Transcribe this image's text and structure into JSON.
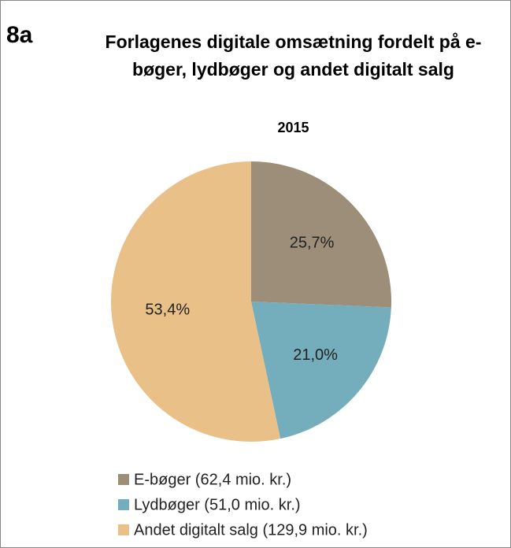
{
  "chart_data": {
    "type": "pie",
    "annotation": "8a",
    "title": "Forlagenes digitale omsætning fordelt på e-bøger, lydbøger og andet digitalt salg",
    "subtitle": "2015",
    "categories": [
      "E-bøger (62,4 mio. kr.)",
      "Lydbøger (51,0 mio. kr.)",
      "Andet digitalt salg (129,9 mio. kr.)"
    ],
    "values": [
      25.7,
      21.0,
      53.4
    ],
    "value_labels": [
      "25,7%",
      "21,0%",
      "53,4%"
    ],
    "colors": [
      "#9c8e78",
      "#74adbb",
      "#e9c088"
    ],
    "legend": "bottom"
  }
}
